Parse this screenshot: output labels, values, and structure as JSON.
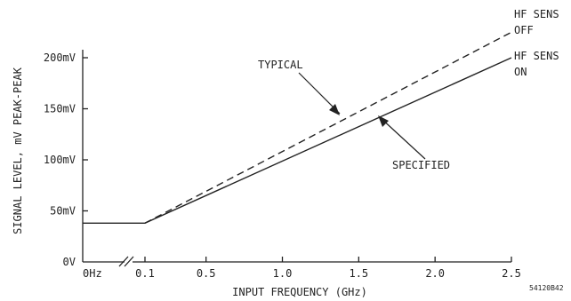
{
  "chart_data": {
    "type": "line",
    "title": "",
    "xlabel": "INPUT FREQUENCY (GHz)",
    "ylabel": "SIGNAL LEVEL, mV PEAK-PEAK",
    "xlim": [
      0,
      2.5
    ],
    "ylim": [
      0,
      225
    ],
    "x_axis_break": "between 0Hz and 0.1",
    "grid": false,
    "x_ticks": [
      {
        "value": 0,
        "label": "0Hz"
      },
      {
        "value": 0.1,
        "label": "0.1"
      },
      {
        "value": 0.5,
        "label": "0.5"
      },
      {
        "value": 1.0,
        "label": "1.0"
      },
      {
        "value": 1.5,
        "label": "1.5"
      },
      {
        "value": 2.0,
        "label": "2.0"
      },
      {
        "value": 2.5,
        "label": "2.5"
      }
    ],
    "y_ticks": [
      {
        "value": 0,
        "label": "0V"
      },
      {
        "value": 50,
        "label": "50mV"
      },
      {
        "value": 100,
        "label": "100mV"
      },
      {
        "value": 150,
        "label": "150mV"
      },
      {
        "value": 200,
        "label": "200mV"
      }
    ],
    "series": [
      {
        "name": "SPECIFIED",
        "style": "solid",
        "color": "#222222",
        "x": [
          0,
          0.1,
          2.5
        ],
        "y": [
          38,
          38,
          200
        ]
      },
      {
        "name": "TYPICAL",
        "style": "dashed",
        "color": "#222222",
        "x": [
          0.1,
          2.5
        ],
        "y": [
          38,
          225
        ]
      }
    ],
    "annotations": {
      "typical": "TYPICAL",
      "specified": "SPECIFIED",
      "hf_off_line1": "HF SENS",
      "hf_off_line2": "OFF",
      "hf_on_line1": "HF SENS",
      "hf_on_line2": "ON",
      "figure_id": "54120B42"
    }
  }
}
